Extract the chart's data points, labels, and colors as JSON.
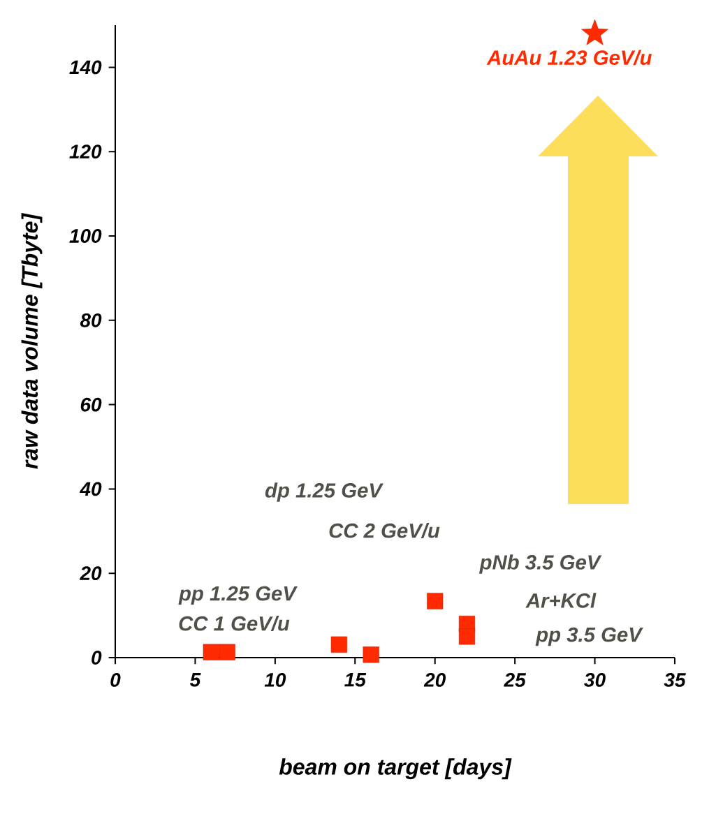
{
  "chart_data": {
    "type": "scatter",
    "xlabel": "beam on target [days]",
    "ylabel": "raw data volume [Tbyte]",
    "xlim": [
      0,
      35
    ],
    "xticks": [
      0,
      5,
      10,
      15,
      20,
      25,
      30,
      35
    ],
    "ylim": [
      0,
      150
    ],
    "yticks": [
      0,
      20,
      40,
      60,
      80,
      100,
      120,
      140
    ],
    "grid": false,
    "series": [
      {
        "color": "#ff2a00",
        "marker": "square",
        "x": [
          6,
          7,
          14,
          16,
          20,
          22,
          22
        ],
        "values": [
          1.3,
          1.3,
          3.1,
          0.7,
          13.4,
          8,
          5
        ]
      },
      {
        "name": "AuAu 1.23 GeV/u",
        "color": "#ff2a00",
        "marker": "star",
        "x": [
          30
        ],
        "values": [
          148
        ]
      }
    ],
    "annotations": [
      "pp 1.25 GeV",
      "CC 1 GeV/u",
      "dp 1.25 GeV",
      "CC 2 GeV/u",
      "pNb 3.5 GeV",
      "Ar+KCl",
      "pp 3.5 GeV"
    ]
  }
}
